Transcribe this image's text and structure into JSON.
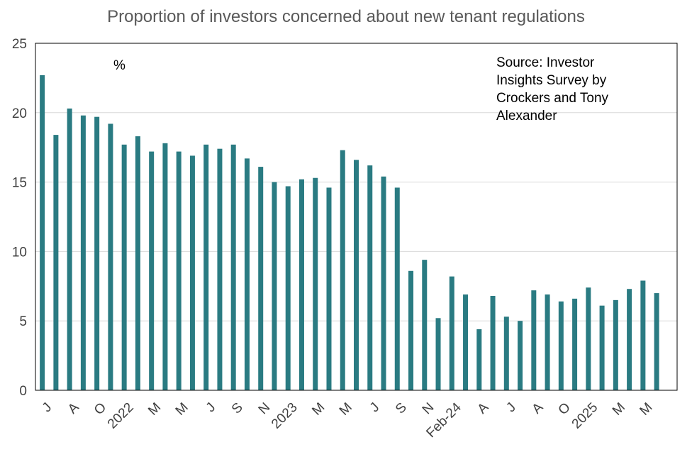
{
  "chart_data": {
    "type": "bar",
    "title": "Proportion of investors concerned about new tenant regulations",
    "unit_label": "%",
    "source_note": [
      "Source: Investor",
      "Insights Survey by",
      "Crockers and Tony",
      "Alexander"
    ],
    "ylim": [
      0,
      25
    ],
    "yticks": [
      0,
      5,
      10,
      15,
      20,
      25
    ],
    "grid": true,
    "bar_color": "#2a7b82",
    "values": [
      22.7,
      18.4,
      20.3,
      19.8,
      19.7,
      19.2,
      17.7,
      18.3,
      17.2,
      17.8,
      17.2,
      16.9,
      17.7,
      17.4,
      17.7,
      16.7,
      16.1,
      15.0,
      14.7,
      15.2,
      15.3,
      14.6,
      17.3,
      16.6,
      16.2,
      15.4,
      14.6,
      8.6,
      9.4,
      5.2,
      8.2,
      6.9,
      4.4,
      6.8,
      5.3,
      5.0,
      7.2,
      6.9,
      6.4,
      6.6,
      7.4,
      6.1,
      6.5,
      7.3,
      7.9,
      7.0
    ],
    "x_tick_labels": [
      {
        "index": 0,
        "label": "J"
      },
      {
        "index": 2,
        "label": "A"
      },
      {
        "index": 4,
        "label": "O"
      },
      {
        "index": 6,
        "label": "2022"
      },
      {
        "index": 8,
        "label": "M"
      },
      {
        "index": 10,
        "label": "M"
      },
      {
        "index": 12,
        "label": "J"
      },
      {
        "index": 14,
        "label": "S"
      },
      {
        "index": 16,
        "label": "N"
      },
      {
        "index": 18,
        "label": "2023"
      },
      {
        "index": 20,
        "label": "M"
      },
      {
        "index": 22,
        "label": "M"
      },
      {
        "index": 24,
        "label": "J"
      },
      {
        "index": 26,
        "label": "S"
      },
      {
        "index": 28,
        "label": "N"
      },
      {
        "index": 30,
        "label": "Feb-24"
      },
      {
        "index": 32,
        "label": "A"
      },
      {
        "index": 34,
        "label": "J"
      },
      {
        "index": 36,
        "label": "A"
      },
      {
        "index": 38,
        "label": "O"
      },
      {
        "index": 40,
        "label": "2025"
      },
      {
        "index": 42,
        "label": "M"
      },
      {
        "index": 44,
        "label": "M"
      }
    ]
  }
}
